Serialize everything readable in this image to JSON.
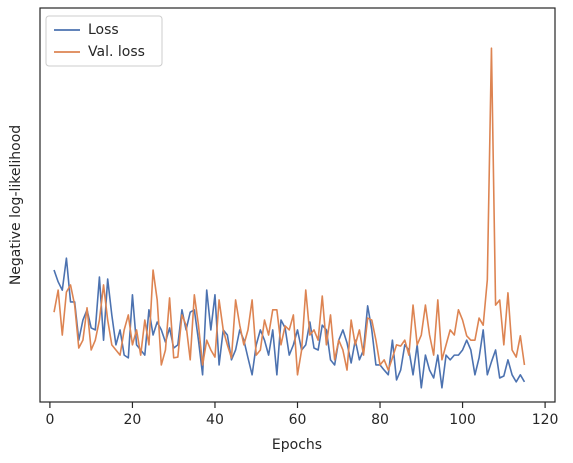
{
  "chart_data": {
    "type": "line",
    "x_label": "Epochs",
    "y_label": "Negative log-likelihood",
    "xlim": [
      -2.4,
      122.4
    ],
    "ylim": [
      0,
      100
    ],
    "xticks": [
      0,
      20,
      40,
      60,
      80,
      100,
      120
    ],
    "legend": "upper left",
    "x": [
      1,
      2,
      3,
      4,
      5,
      6,
      7,
      8,
      9,
      10,
      11,
      12,
      13,
      14,
      15,
      16,
      17,
      18,
      19,
      20,
      21,
      22,
      23,
      24,
      25,
      26,
      27,
      28,
      29,
      30,
      31,
      32,
      33,
      34,
      35,
      36,
      37,
      38,
      39,
      40,
      41,
      42,
      43,
      44,
      45,
      46,
      47,
      48,
      49,
      50,
      51,
      52,
      53,
      54,
      55,
      56,
      57,
      58,
      59,
      60,
      61,
      62,
      63,
      64,
      65,
      66,
      67,
      68,
      69,
      70,
      71,
      72,
      73,
      74,
      75,
      76,
      77,
      78,
      79,
      80,
      81,
      82,
      83,
      84,
      85,
      86,
      87,
      88,
      89,
      90,
      91,
      92,
      93,
      94,
      95,
      96,
      97,
      98,
      99,
      100,
      101,
      102,
      103,
      104,
      105,
      106,
      107,
      108,
      109,
      110,
      111,
      112,
      113,
      114,
      115
    ],
    "series": [
      {
        "name": "Loss",
        "color": "#4c72b0",
        "values": [
          33.5,
          30.5,
          28.4,
          36.5,
          25.4,
          25.4,
          15.7,
          20.8,
          23.4,
          18.8,
          18.3,
          31.7,
          15.7,
          31.2,
          22.1,
          14.5,
          18.3,
          11.9,
          11.2,
          27.2,
          14.5,
          13.2,
          11.9,
          23.4,
          17.0,
          20.3,
          18.3,
          15.2,
          18.8,
          13.7,
          14.5,
          23.4,
          18.3,
          22.8,
          23.4,
          15.7,
          6.9,
          28.4,
          18.3,
          27.2,
          9.4,
          18.3,
          17.0,
          10.7,
          13.2,
          18.3,
          15.7,
          11.2,
          6.9,
          14.5,
          18.3,
          15.7,
          11.9,
          18.3,
          6.9,
          20.8,
          18.8,
          11.9,
          14.5,
          18.3,
          13.2,
          14.5,
          20.3,
          13.7,
          13.2,
          19.5,
          18.3,
          10.7,
          9.4,
          15.7,
          18.3,
          15.0,
          9.9,
          15.7,
          10.7,
          13.2,
          24.4,
          18.3,
          9.4,
          9.4,
          8.1,
          6.9,
          15.7,
          5.6,
          8.1,
          14.5,
          13.2,
          6.9,
          14.5,
          3.6,
          11.9,
          8.1,
          6.1,
          11.9,
          3.6,
          11.9,
          10.7,
          11.9,
          11.9,
          13.2,
          15.7,
          13.2,
          6.9,
          11.2,
          18.3,
          6.9,
          10.2,
          13.2,
          6.1,
          6.6,
          10.7,
          6.9,
          5.1,
          6.9,
          5.1
        ]
      },
      {
        "name": "Val. loss",
        "color": "#dd8452",
        "values": [
          22.8,
          28.4,
          17.0,
          27.9,
          29.7,
          24.6,
          13.7,
          15.7,
          23.9,
          13.2,
          15.7,
          20.8,
          29.7,
          20.8,
          14.5,
          13.2,
          11.9,
          18.3,
          22.1,
          14.5,
          18.3,
          11.9,
          20.8,
          14.5,
          33.5,
          25.9,
          9.4,
          13.2,
          26.4,
          11.2,
          11.4,
          22.1,
          19.5,
          10.7,
          27.2,
          19.5,
          9.4,
          15.7,
          13.2,
          11.4,
          25.9,
          18.3,
          14.5,
          11.2,
          25.9,
          19.5,
          14.5,
          18.3,
          25.9,
          11.9,
          13.2,
          20.8,
          17.0,
          23.4,
          23.4,
          14.5,
          19.3,
          18.3,
          22.1,
          6.9,
          13.2,
          28.4,
          17.0,
          18.3,
          15.7,
          26.9,
          14.5,
          22.1,
          10.7,
          15.7,
          13.2,
          8.1,
          20.8,
          14.5,
          18.3,
          11.9,
          21.3,
          20.8,
          15.7,
          9.4,
          10.7,
          8.1,
          11.2,
          14.5,
          14.2,
          15.7,
          11.9,
          24.6,
          14.5,
          17.0,
          24.6,
          17.0,
          11.9,
          25.9,
          10.7,
          14.5,
          18.3,
          17.0,
          23.4,
          20.8,
          16.8,
          15.7,
          15.7,
          21.3,
          19.5,
          31.0,
          89.8,
          24.6,
          25.9,
          14.5,
          27.7,
          13.2,
          11.4,
          16.8,
          9.4
        ]
      }
    ]
  }
}
